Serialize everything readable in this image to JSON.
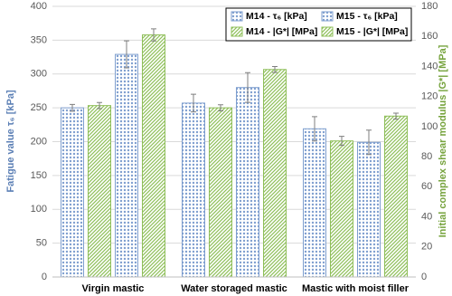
{
  "chart_data": {
    "type": "bar",
    "categories": [
      "Virgin mastic",
      "Water storaged mastic",
      "Mastic with moist filler"
    ],
    "series": [
      {
        "name": "M14 - τ₆ [kPa]",
        "color": "#7f9fcf",
        "axis": "y",
        "values": [
          250,
          257,
          219
        ],
        "errors": [
          5,
          13,
          18
        ]
      },
      {
        "name": "M14 - |G*| [MPa]",
        "color": "#8fbf5a",
        "axis": "y2",
        "values": [
          114,
          112.5,
          90.5
        ],
        "errors": [
          2,
          2,
          3
        ]
      },
      {
        "name": "M15 - τ₆ [kPa]",
        "color": "#7f9fcf",
        "axis": "y",
        "values": [
          329,
          280,
          199
        ],
        "errors": [
          20,
          22,
          18
        ]
      },
      {
        "name": "M15 - |G*| [MPa]",
        "color": "#8fbf5a",
        "axis": "y2",
        "values": [
          161,
          138,
          107
        ],
        "errors": [
          4,
          2,
          2
        ]
      }
    ],
    "ylabel": "Fatigue value τ₆ [kPa]",
    "y2label": "Initial complex shear modulus |G*| [MPa]",
    "ylim": [
      0,
      400
    ],
    "yticks": [
      0,
      50,
      100,
      150,
      200,
      250,
      300,
      350,
      400
    ],
    "y2lim": [
      0,
      180
    ],
    "y2ticks": [
      0,
      20,
      40,
      60,
      80,
      100,
      120,
      140,
      160,
      180
    ],
    "grid": true,
    "legend": "top-right"
  }
}
